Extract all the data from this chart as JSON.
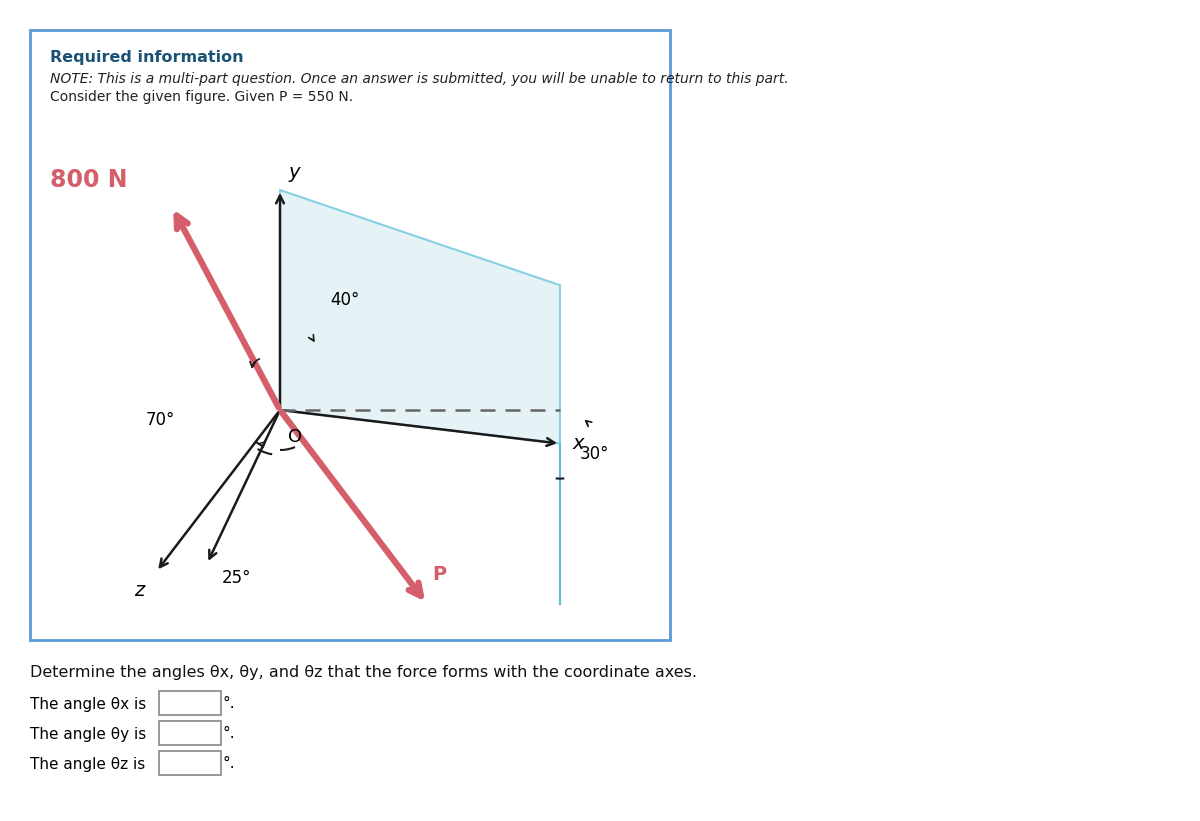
{
  "title_bold": "Required information",
  "title_color": "#1a5276",
  "note_line1": "NOTE: This is a multi-part question. Once an answer is submitted, you will be unable to return to this part.",
  "note_line2": "Consider the given figure. Given P = 550 N.",
  "background_color": "#ffffff",
  "border_color": "#5b9bd5",
  "panel_color": "#daeef5",
  "cyan_edge_color": "#5bbfda",
  "y_axis_label": "y",
  "x_axis_label": "x",
  "z_axis_label": "z",
  "force_800_label": "800 N",
  "force_p_label": "P",
  "angle_40_label": "40°",
  "angle_70_label": "70°",
  "angle_25_label": "25°",
  "angle_30_label": "30°",
  "O_label": "O",
  "arrow_red": "#d45f6a",
  "axis_color": "#1a1a1a",
  "dashed_color": "#666666",
  "bottom_text": "Determine the angles θx, θy, and θz that the force forms with the coordinate axes.",
  "answer_label_x": "The angle θx is",
  "answer_label_y": "The angle θy is",
  "answer_label_z": "The angle θz is"
}
